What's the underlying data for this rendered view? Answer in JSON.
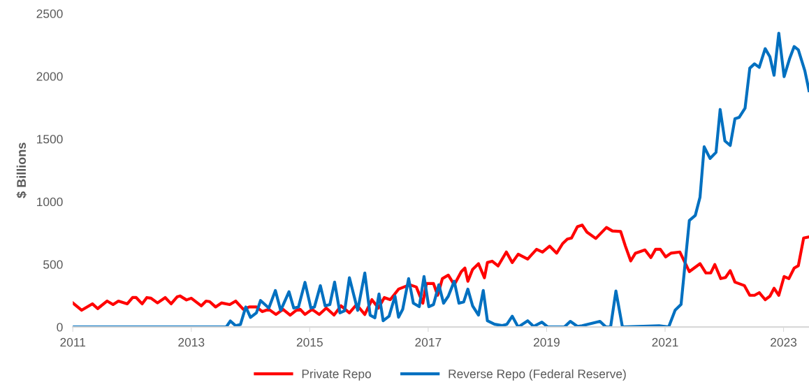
{
  "chart_data": {
    "type": "line",
    "ylabel": "$ Billions",
    "xlim": [
      2011,
      2023.43
    ],
    "xticks": [
      2011,
      2013,
      2015,
      2017,
      2019,
      2021,
      2023
    ],
    "ylim": [
      0,
      2500
    ],
    "yticks": [
      0,
      500,
      1000,
      1500,
      2000,
      2500
    ],
    "grid": false,
    "legend": "bottom",
    "marker": "none",
    "line_style": "solid",
    "series": [
      {
        "name": "Private Repo",
        "color": "#ff0000",
        "x": [
          2011.0,
          2011.15,
          2011.33,
          2011.42,
          2011.58,
          2011.68,
          2011.77,
          2011.92,
          2012.01,
          2012.07,
          2012.17,
          2012.25,
          2012.32,
          2012.43,
          2012.56,
          2012.66,
          2012.76,
          2012.81,
          2012.92,
          2013.0,
          2013.17,
          2013.25,
          2013.31,
          2013.41,
          2013.51,
          2013.65,
          2013.75,
          2013.88,
          2013.98,
          2014.1,
          2014.2,
          2014.31,
          2014.43,
          2014.55,
          2014.67,
          2014.77,
          2014.84,
          2014.92,
          2015.04,
          2015.16,
          2015.28,
          2015.41,
          2015.53,
          2015.67,
          2015.79,
          2015.93,
          2016.05,
          2016.16,
          2016.26,
          2016.36,
          2016.5,
          2016.59,
          2016.69,
          2016.8,
          2016.91,
          2016.97,
          2017.09,
          2017.16,
          2017.24,
          2017.34,
          2017.44,
          2017.56,
          2017.62,
          2017.67,
          2017.75,
          2017.85,
          2017.95,
          2018.0,
          2018.08,
          2018.18,
          2018.32,
          2018.42,
          2018.52,
          2018.68,
          2018.83,
          2018.93,
          2019.05,
          2019.17,
          2019.27,
          2019.35,
          2019.42,
          2019.52,
          2019.6,
          2019.68,
          2019.83,
          2020.01,
          2020.11,
          2020.25,
          2020.33,
          2020.42,
          2020.5,
          2020.66,
          2020.76,
          2020.84,
          2020.92,
          2021.01,
          2021.1,
          2021.25,
          2021.41,
          2021.59,
          2021.69,
          2021.77,
          2021.84,
          2021.94,
          2022.02,
          2022.1,
          2022.18,
          2022.34,
          2022.43,
          2022.51,
          2022.59,
          2022.69,
          2022.77,
          2022.84,
          2022.92,
          2023.01,
          2023.09,
          2023.18,
          2023.25,
          2023.34,
          2023.43
        ],
        "values": [
          192,
          134,
          185,
          147,
          207,
          179,
          207,
          185,
          235,
          235,
          185,
          235,
          230,
          192,
          235,
          185,
          240,
          248,
          216,
          230,
          169,
          207,
          203,
          160,
          192,
          179,
          207,
          141,
          160,
          160,
          123,
          141,
          100,
          141,
          95,
          132,
          141,
          100,
          141,
          100,
          151,
          95,
          169,
          113,
          179,
          100,
          218,
          151,
          235,
          218,
          302,
          319,
          337,
          319,
          190,
          347,
          347,
          253,
          386,
          414,
          337,
          442,
          470,
          365,
          459,
          505,
          393,
          514,
          525,
          487,
          598,
          514,
          581,
          542,
          620,
          598,
          645,
          589,
          665,
          701,
          710,
          800,
          813,
          757,
          706,
          794,
          766,
          762,
          645,
          527,
          589,
          615,
          554,
          620,
          620,
          559,
          589,
          598,
          442,
          505,
          431,
          431,
          498,
          386,
          395,
          449,
          358,
          330,
          253,
          253,
          274,
          218,
          246,
          309,
          253,
          403,
          386,
          470,
          489,
          710,
          719
        ]
      },
      {
        "name": "Reverse Repo (Federal Reserve)",
        "color": "#0070c0",
        "x": [
          2011.0,
          2013.59,
          2013.66,
          2013.75,
          2013.83,
          2013.92,
          2014.0,
          2014.1,
          2014.17,
          2014.31,
          2014.42,
          2014.51,
          2014.65,
          2014.73,
          2014.81,
          2014.92,
          2015.02,
          2015.08,
          2015.18,
          2015.26,
          2015.34,
          2015.42,
          2015.51,
          2015.59,
          2015.67,
          2015.81,
          2015.93,
          2016.02,
          2016.1,
          2016.17,
          2016.24,
          2016.34,
          2016.44,
          2016.5,
          2016.57,
          2016.67,
          2016.75,
          2016.85,
          2016.93,
          2017.01,
          2017.09,
          2017.18,
          2017.26,
          2017.34,
          2017.44,
          2017.52,
          2017.6,
          2017.67,
          2017.75,
          2017.85,
          2017.93,
          2018.0,
          2018.12,
          2018.25,
          2018.33,
          2018.42,
          2018.52,
          2018.68,
          2018.78,
          2018.92,
          2019.02,
          2019.3,
          2019.4,
          2019.52,
          2019.6,
          2019.9,
          2020.0,
          2020.08,
          2020.17,
          2020.28,
          2020.9,
          2021.06,
          2021.17,
          2021.27,
          2021.41,
          2021.51,
          2021.59,
          2021.66,
          2021.76,
          2021.86,
          2021.93,
          2022.01,
          2022.1,
          2022.18,
          2022.25,
          2022.35,
          2022.43,
          2022.51,
          2022.59,
          2022.69,
          2022.77,
          2022.84,
          2022.92,
          2023.01,
          2023.1,
          2023.18,
          2023.25,
          2023.36,
          2023.43
        ],
        "values": [
          0,
          0,
          48,
          10,
          20,
          160,
          77,
          113,
          211,
          151,
          291,
          132,
          281,
          151,
          160,
          356,
          151,
          160,
          330,
          169,
          179,
          358,
          113,
          130,
          393,
          133,
          431,
          95,
          73,
          263,
          50,
          86,
          246,
          78,
          141,
          386,
          190,
          162,
          403,
          162,
          179,
          337,
          190,
          246,
          365,
          190,
          200,
          302,
          169,
          95,
          291,
          50,
          22,
          12,
          22,
          86,
          0,
          50,
          5,
          39,
          0,
          0,
          45,
          5,
          10,
          45,
          0,
          0,
          287,
          0,
          10,
          0,
          134,
          180,
          850,
          890,
          1036,
          1437,
          1344,
          1393,
          1735,
          1484,
          1448,
          1661,
          1672,
          1745,
          2064,
          2099,
          2071,
          2220,
          2155,
          2008,
          2343,
          1997,
          2137,
          2237,
          2211,
          2043,
          1885
        ]
      }
    ]
  }
}
